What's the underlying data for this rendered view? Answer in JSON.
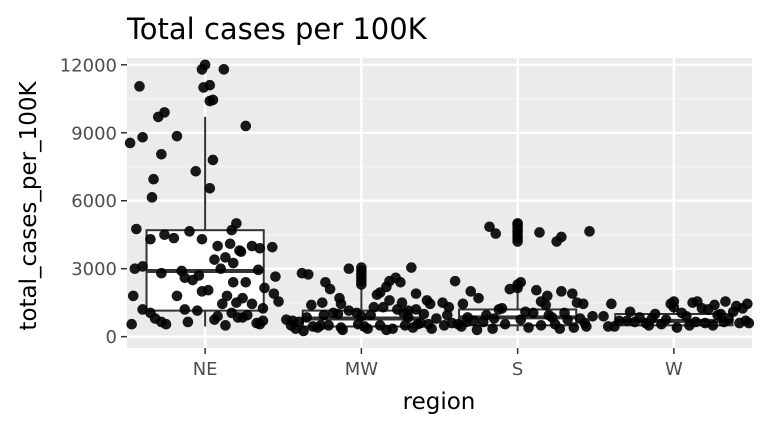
{
  "chart_data": {
    "type": "boxplot-jitter",
    "title": "Total cases per 100K",
    "xlabel": "region",
    "ylabel": "total_cases_per_100K",
    "categories": [
      "NE",
      "MW",
      "S",
      "W"
    ],
    "ylim": [
      -500,
      12300
    ],
    "yticks": [
      0,
      3000,
      6000,
      9000,
      12000
    ],
    "yticklabels": [
      "0",
      "3000",
      "6000",
      "9000",
      "12000"
    ],
    "grid": true,
    "legend": "none",
    "colors": {
      "panel": "#ebebeb",
      "grid_major": "#ffffff",
      "grid_minor": "#f5f5f5",
      "points": "#000000",
      "box_line": "#333333",
      "box_fill": "#ffffff",
      "tick_label": "#4d4d4d"
    },
    "boxes": [
      {
        "category": "NE",
        "q1": 1150,
        "median": 2900,
        "q3": 4700,
        "whisker_low": 450,
        "whisker_high": 9700
      },
      {
        "category": "MW",
        "q1": 450,
        "median": 800,
        "q3": 1150,
        "whisker_low": 250,
        "whisker_high": 2150
      },
      {
        "category": "S",
        "q1": 500,
        "median": 850,
        "q3": 1200,
        "whisker_low": 250,
        "whisker_high": 2300
      },
      {
        "category": "W",
        "q1": 500,
        "median": 700,
        "q3": 1000,
        "whisker_low": 300,
        "whisker_high": 1400
      }
    ],
    "points": [
      {
        "category": "NE",
        "x": [
          -0.48,
          -0.4,
          -0.42,
          -0.3,
          -0.18,
          -0.28,
          -0.33,
          -0.06,
          0.05,
          0.03,
          -0.34,
          -0.26,
          0.26,
          -0.46,
          0.2,
          -0.1,
          0.17,
          -0.35,
          0.08,
          -0.26,
          -0.2,
          -0.02,
          -0.44,
          0.16,
          0.3,
          0.35,
          0.13,
          -0.4,
          -0.15,
          0.06,
          0.22,
          -0.13,
          0.23,
          0.43,
          0.18,
          -0.28,
          -0.45,
          0.34,
          0.45,
          0.18,
          -0.08,
          0.38,
          0.1,
          -0.04,
          0.26,
          0.14,
          -0.18,
          0.3,
          0.24,
          -0.4,
          0.02,
          0.2,
          0.37,
          0.44,
          -0.13,
          -0.35,
          0.08,
          -0.02,
          0.27,
          0.47,
          -0.47,
          -0.28,
          0.17,
          -0.11,
          0.33,
          0.37,
          0.13,
          0.21,
          0.06,
          -0.05,
          -0.25,
          0.35,
          -0.32,
          0.24,
          0.11,
          0.0,
          0.03,
          -0.02,
          0.12,
          -0.01,
          0.03,
          0.05
        ],
        "y": [
          8550,
          8800,
          11050,
          9700,
          8850,
          8050,
          6950,
          7300,
          7800,
          6550,
          6150,
          9900,
          9300,
          1800,
          5000,
          4650,
          4700,
          4300,
          4000,
          4500,
          4350,
          4300,
          4750,
          4100,
          4000,
          3900,
          3500,
          3100,
          2900,
          3400,
          3800,
          2600,
          3750,
          3950,
          3250,
          2800,
          3000,
          2950,
          2650,
          2400,
          2500,
          2150,
          3000,
          2700,
          2400,
          1800,
          1800,
          1450,
          1700,
          1200,
          2050,
          1500,
          1250,
          1900,
          1200,
          1050,
          900,
          2000,
          950,
          1550,
          550,
          650,
          1050,
          650,
          600,
          700,
          500,
          850,
          750,
          1150,
          550,
          550,
          800,
          850,
          1450,
          12000,
          11100,
          11800,
          11800,
          11000,
          10400,
          10450
        ]
      },
      {
        "category": "MW",
        "x": [
          -0.34,
          -0.38,
          -0.25,
          -0.23,
          -0.32,
          -0.13,
          -0.2,
          -0.14,
          -0.08,
          0.12,
          0.18,
          0.32,
          0.25,
          0.22,
          0.1,
          0.16,
          0.26,
          0.35,
          0.18,
          0.35,
          0.42,
          0.44,
          0.3,
          0.27,
          0.08,
          -0.15,
          -0.44,
          -0.4,
          -0.48,
          -0.35,
          -0.24,
          -0.18,
          -0.08,
          -0.03,
          0.0,
          0.06,
          0.14,
          0.23,
          0.3,
          0.4,
          0.48,
          -0.45,
          -0.28,
          -0.02,
          0.36,
          -0.42,
          -0.31,
          -0.21,
          -0.13,
          0.02,
          0.12,
          0.2,
          0.33,
          0.43,
          -0.12,
          0.04,
          0.28,
          -0.37,
          -0.26,
          0.16,
          0.38,
          0.45,
          0.0,
          0.0,
          0.0,
          0.0,
          0.0,
          0.0
        ],
        "y": [
          2750,
          2800,
          1500,
          2400,
          1400,
          1450,
          2100,
          1700,
          3000,
          1950,
          2450,
          3050,
          2400,
          2600,
          1850,
          2200,
          1500,
          1900,
          1600,
          1200,
          1600,
          1450,
          1150,
          1050,
          1300,
          1000,
          700,
          650,
          750,
          850,
          950,
          1050,
          1150,
          1050,
          900,
          950,
          1300,
          1200,
          850,
          1000,
          800,
          500,
          400,
          550,
          550,
          350,
          450,
          500,
          400,
          450,
          500,
          350,
          400,
          550,
          300,
          350,
          500,
          250,
          500,
          300,
          600,
          350,
          3050,
          2900,
          2750,
          2600,
          2450,
          2300
        ]
      },
      {
        "category": "S",
        "x": [
          -0.18,
          -0.14,
          -0.4,
          -0.12,
          -0.48,
          -0.35,
          -0.25,
          -0.3,
          -0.05,
          0.02,
          -0.44,
          0.12,
          0.19,
          0.15,
          0.18,
          0.28,
          0.35,
          0.42,
          0.38,
          0.14,
          0.25,
          0.28,
          0.46,
          0.3,
          0.2,
          -0.2,
          -0.45,
          -0.32,
          -0.1,
          -0.42,
          -0.38,
          -0.28,
          -0.22,
          -0.15,
          -0.08,
          0.05,
          0.1,
          0.22,
          0.32,
          0.4,
          0.48,
          -0.47,
          -0.36,
          -0.26,
          -0.16,
          0.07,
          0.15,
          0.27,
          0.36,
          0.44,
          -0.33,
          0.02,
          0.24,
          0.43,
          0.0,
          0.0,
          0.0,
          0.0,
          0.0,
          0.0,
          0.0,
          0.0,
          0.0
        ],
        "y": [
          4850,
          4550,
          2450,
          1200,
          1500,
          1450,
          1700,
          2000,
          2100,
          2400,
          1300,
          2050,
          1800,
          1550,
          1400,
          2000,
          1900,
          1450,
          1500,
          4600,
          4200,
          4400,
          4650,
          1050,
          950,
          950,
          950,
          850,
          1250,
          600,
          550,
          700,
          650,
          800,
          550,
          1100,
          1050,
          850,
          750,
          800,
          900,
          500,
          450,
          300,
          350,
          400,
          500,
          350,
          400,
          450,
          650,
          750,
          550,
          600,
          5000,
          4950,
          4800,
          4650,
          4500,
          4350,
          4200,
          2300,
          2150
        ]
      },
      {
        "category": "W",
        "x": [
          -0.4,
          -0.28,
          -0.45,
          -0.22,
          -0.12,
          -0.05,
          0.05,
          0.12,
          0.18,
          0.26,
          0.33,
          0.4,
          0.47,
          -0.35,
          -0.18,
          0.0,
          0.08,
          0.22,
          0.3,
          0.38,
          0.44,
          -0.3,
          -0.14,
          0.14,
          0.28,
          -0.42,
          -0.25,
          -0.08,
          0.1,
          0.2,
          0.35,
          0.46,
          -0.38,
          -0.16,
          0.02,
          0.25,
          0.42,
          0.0,
          0.15,
          -0.02,
          0.32,
          0.48
        ],
        "y": [
          1450,
          1100,
          900,
          850,
          1000,
          750,
          1050,
          1500,
          1250,
          1400,
          1550,
          1350,
          1450,
          700,
          600,
          1300,
          900,
          1200,
          1000,
          1100,
          1250,
          700,
          800,
          650,
          950,
          450,
          650,
          550,
          500,
          600,
          750,
          700,
          450,
          500,
          400,
          500,
          600,
          1550,
          1550,
          1450,
          650,
          600
        ]
      }
    ]
  }
}
